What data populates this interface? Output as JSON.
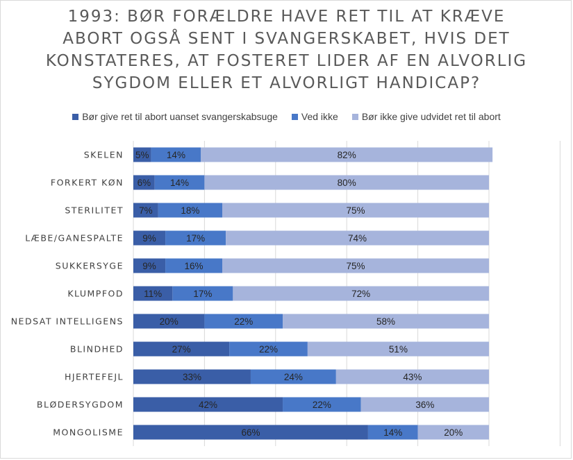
{
  "chart_data": {
    "type": "bar",
    "orientation": "horizontal",
    "stacked": true,
    "title_lines": [
      "1993: BØR FORÆLDRE HAVE RET TIL AT KRÆVE",
      "ABORT OGSÅ SENT I SVANGERSKABET, HVIS DET",
      "KONSTATERES, AT FOSTERET LIDER AF EN ALVORLIG",
      "SYGDOM ELLER ET ALVORLIGT HANDICAP?"
    ],
    "legend_position": "top",
    "grid": "vertical",
    "xlim": [
      0,
      100
    ],
    "categories": [
      "SKELEN",
      "FORKERT KØN",
      "STERILITET",
      "LÆBE/GANESPALTE",
      "SUKKERSYGE",
      "KLUMPFOD",
      "NEDSAT INTELLIGENS",
      "BLINDHED",
      "HJERTEFEJL",
      "BLØDERSYGDOM",
      "MONGOLISME"
    ],
    "series": [
      {
        "name": "Bør give ret til abort uanset svangerskabsuge",
        "color": "#3a5ea7",
        "values": [
          5,
          6,
          7,
          9,
          9,
          11,
          20,
          27,
          33,
          42,
          66
        ],
        "labels": [
          "5%",
          "6%",
          "7%",
          "9%",
          "9%",
          "11%",
          "20%",
          "27%",
          "33%",
          "42%",
          "66%"
        ]
      },
      {
        "name": "Ved ikke",
        "color": "#4878c8",
        "values": [
          14,
          14,
          18,
          17,
          16,
          17,
          22,
          22,
          24,
          22,
          14
        ],
        "labels": [
          "14%",
          "14%",
          "18%",
          "17%",
          "16%",
          "17%",
          "22%",
          "22%",
          "24%",
          "22%",
          "14%"
        ]
      },
      {
        "name": "Bør ikke give udvidet ret til abort",
        "color": "#a6b4dc",
        "values": [
          82,
          80,
          75,
          74,
          75,
          72,
          58,
          51,
          43,
          36,
          20
        ],
        "labels": [
          "82%",
          "80%",
          "75%",
          "74%",
          "75%",
          "72%",
          "58%",
          "51%",
          "43%",
          "36%",
          "20%"
        ]
      }
    ]
  }
}
